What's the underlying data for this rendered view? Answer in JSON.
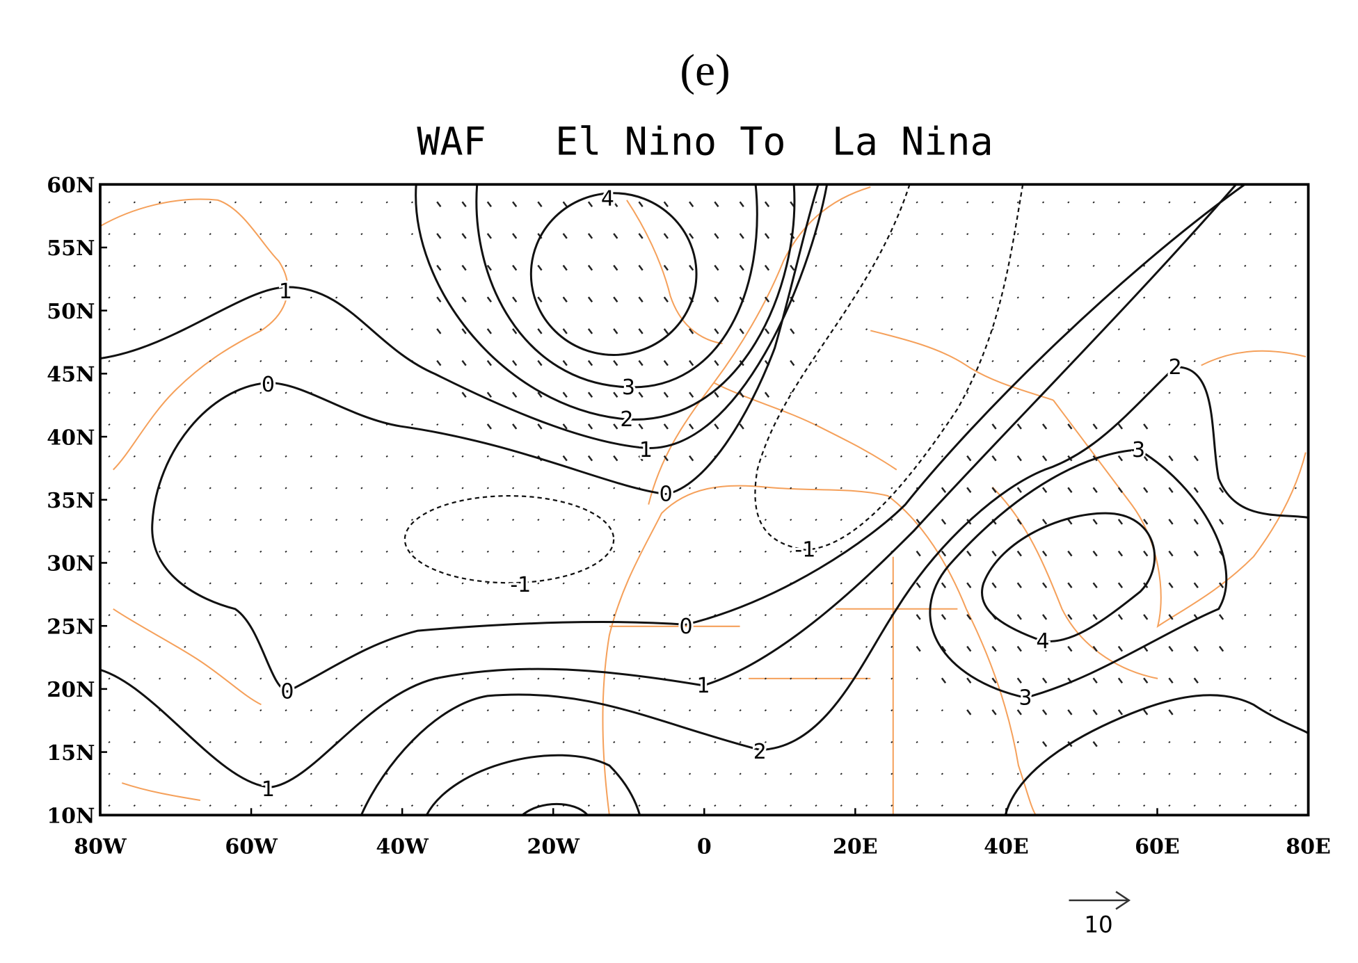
{
  "panel_label": "(e)",
  "map": {
    "title": "WAF   El Nino To  La Nina",
    "xlim": [
      -80,
      80
    ],
    "ylim": [
      10,
      60
    ],
    "xticks": [
      {
        "value": -80,
        "label": "80W"
      },
      {
        "value": -60,
        "label": "60W"
      },
      {
        "value": -40,
        "label": "40W"
      },
      {
        "value": -20,
        "label": "20W"
      },
      0,
      {
        "value": 20,
        "label": "20E"
      },
      {
        "value": 40,
        "label": "40E"
      },
      {
        "value": 60,
        "label": "60E"
      },
      {
        "value": 80,
        "label": "80E"
      }
    ],
    "yticks": [
      {
        "value": 10,
        "label": "10N"
      },
      {
        "value": 15,
        "label": "15N"
      },
      {
        "value": 20,
        "label": "20N"
      },
      {
        "value": 25,
        "label": "25N"
      },
      {
        "value": 30,
        "label": "30N"
      },
      {
        "value": 35,
        "label": "35N"
      },
      {
        "value": 40,
        "label": "40N"
      },
      {
        "value": 45,
        "label": "45N"
      },
      {
        "value": 50,
        "label": "50N"
      },
      {
        "value": 55,
        "label": "55N"
      },
      {
        "value": 60,
        "label": "60N"
      }
    ],
    "contour_labels": [
      4,
      3,
      2,
      1,
      0,
      1,
      0,
      -1,
      0,
      1,
      2,
      0,
      1,
      -1,
      2,
      3,
      4,
      3
    ],
    "reference_vector": 10
  }
}
